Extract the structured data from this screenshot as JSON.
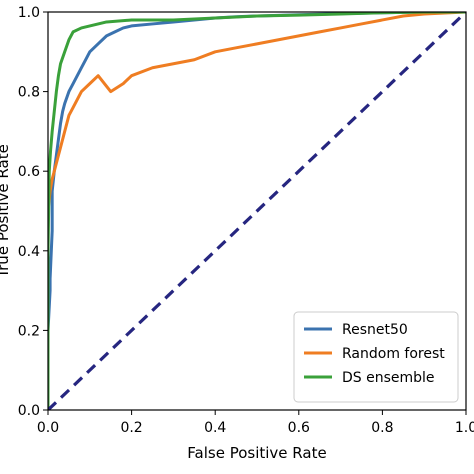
{
  "chart_data": {
    "type": "line",
    "title": "",
    "xlabel": "False Positive Rate",
    "ylabel": "True Positive Rate",
    "xlim": [
      0,
      1
    ],
    "ylim": [
      0,
      1.0
    ],
    "xticks": [
      "0.0",
      "0.2",
      "0.4",
      "0.6",
      "0.8",
      "1.0"
    ],
    "yticks": [
      "0.0",
      "0.2",
      "0.4",
      "0.6",
      "0.8",
      "1.0"
    ],
    "grid": false,
    "legend_position": "bottom-right",
    "series": [
      {
        "name": "Resnet50",
        "color": "#3b73af",
        "x": [
          0,
          0,
          0.005,
          0.005,
          0.01,
          0.01,
          0.015,
          0.02,
          0.025,
          0.03,
          0.035,
          0.04,
          0.05,
          0.06,
          0.07,
          0.08,
          0.09,
          0.1,
          0.12,
          0.14,
          0.16,
          0.18,
          0.2,
          0.25,
          0.3,
          0.35,
          0.4,
          0.45,
          0.5,
          0.6,
          0.7,
          0.8,
          0.9,
          1.0
        ],
        "y": [
          0,
          0.2,
          0.3,
          0.33,
          0.45,
          0.55,
          0.6,
          0.64,
          0.68,
          0.72,
          0.75,
          0.77,
          0.8,
          0.82,
          0.84,
          0.86,
          0.88,
          0.9,
          0.92,
          0.94,
          0.95,
          0.96,
          0.965,
          0.97,
          0.975,
          0.98,
          0.985,
          0.988,
          0.99,
          0.993,
          0.996,
          0.998,
          1.0,
          1.0
        ]
      },
      {
        "name": "Random forest",
        "color": "#ef7d22",
        "x": [
          0,
          0,
          0.005,
          0.01,
          0.015,
          0.02,
          0.025,
          0.03,
          0.04,
          0.05,
          0.06,
          0.07,
          0.08,
          0.1,
          0.12,
          0.15,
          0.18,
          0.2,
          0.25,
          0.3,
          0.35,
          0.4,
          0.45,
          0.5,
          0.55,
          0.6,
          0.65,
          0.7,
          0.75,
          0.8,
          0.85,
          0.9,
          1.0
        ],
        "y": [
          0,
          0.5,
          0.55,
          0.58,
          0.6,
          0.62,
          0.64,
          0.66,
          0.7,
          0.74,
          0.76,
          0.78,
          0.8,
          0.82,
          0.84,
          0.8,
          0.82,
          0.84,
          0.86,
          0.87,
          0.88,
          0.9,
          0.91,
          0.92,
          0.93,
          0.94,
          0.95,
          0.96,
          0.97,
          0.98,
          0.99,
          0.995,
          1.0
        ]
      },
      {
        "name": "DS ensemble",
        "color": "#3aa13a",
        "x": [
          0,
          0,
          0.003,
          0.006,
          0.01,
          0.015,
          0.02,
          0.025,
          0.03,
          0.04,
          0.05,
          0.06,
          0.08,
          0.1,
          0.12,
          0.14,
          0.2,
          0.3,
          0.4,
          0.5,
          0.6,
          0.7,
          0.8,
          0.9,
          1.0
        ],
        "y": [
          0,
          0.4,
          0.6,
          0.65,
          0.7,
          0.75,
          0.8,
          0.84,
          0.87,
          0.9,
          0.93,
          0.95,
          0.96,
          0.965,
          0.97,
          0.975,
          0.98,
          0.98,
          0.985,
          0.99,
          0.992,
          0.995,
          0.998,
          1.0,
          1.0
        ]
      },
      {
        "name": "",
        "color": "#262680",
        "dashed": true,
        "x": [
          0,
          1
        ],
        "y": [
          0,
          1
        ]
      }
    ]
  }
}
